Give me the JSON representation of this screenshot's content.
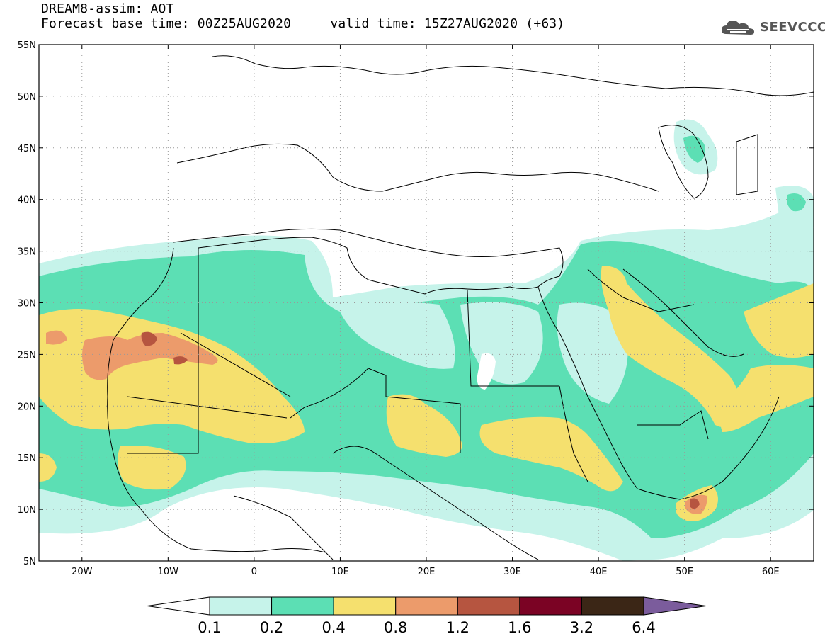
{
  "header": {
    "title_line1": "DREAM8-assim: AOT",
    "title_line2": "Forecast base time: 00Z25AUG2020     valid time: 15Z27AUG2020 (+63)",
    "logo_text": "SEEVCCC"
  },
  "map": {
    "lon_range": [
      -25,
      65
    ],
    "lat_range": [
      5,
      55
    ],
    "lat_ticks": [
      {
        "value": 55,
        "label": "55N"
      },
      {
        "value": 50,
        "label": "50N"
      },
      {
        "value": 45,
        "label": "45N"
      },
      {
        "value": 40,
        "label": "40N"
      },
      {
        "value": 35,
        "label": "35N"
      },
      {
        "value": 30,
        "label": "30N"
      },
      {
        "value": 25,
        "label": "25N"
      },
      {
        "value": 20,
        "label": "20N"
      },
      {
        "value": 15,
        "label": "15N"
      },
      {
        "value": 10,
        "label": "10N"
      },
      {
        "value": 5,
        "label": "5N"
      }
    ],
    "lon_ticks": [
      {
        "value": -20,
        "label": "20W"
      },
      {
        "value": -10,
        "label": "10W"
      },
      {
        "value": 0,
        "label": "0"
      },
      {
        "value": 10,
        "label": "10E"
      },
      {
        "value": 20,
        "label": "20E"
      },
      {
        "value": 30,
        "label": "30E"
      },
      {
        "value": 40,
        "label": "40E"
      },
      {
        "value": 50,
        "label": "50E"
      },
      {
        "value": 60,
        "label": "60E"
      }
    ]
  },
  "colorbar": {
    "colors": [
      "#ffffff",
      "#c6f3ea",
      "#5cdfb4",
      "#f5e06e",
      "#ec9b6b",
      "#b65540",
      "#7b0324",
      "#3b2616",
      "#7b5c9c"
    ],
    "labels": [
      "0.1",
      "0.2",
      "0.4",
      "0.8",
      "1.2",
      "1.6",
      "3.2",
      "6.4"
    ]
  }
}
